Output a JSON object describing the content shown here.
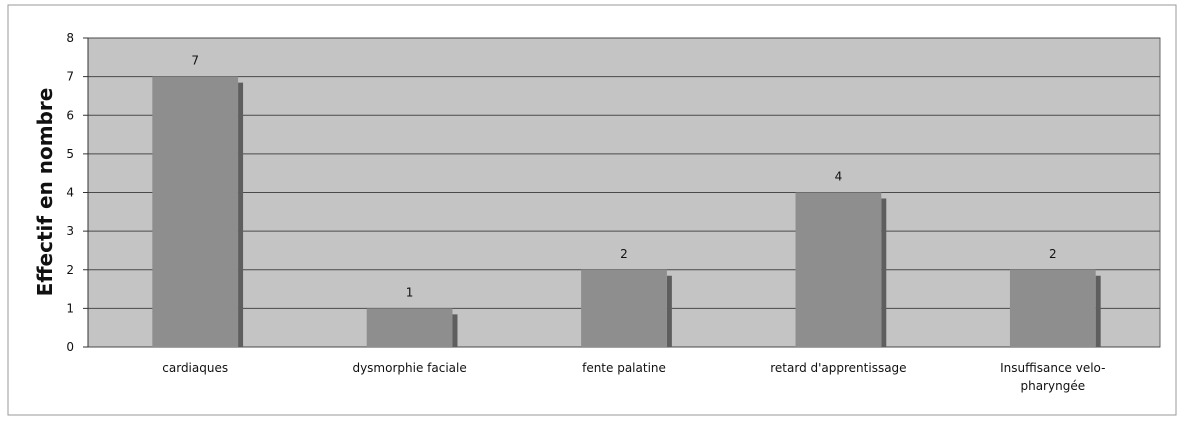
{
  "chart_data": {
    "type": "bar",
    "y_label": "Effectif en nombre",
    "categories": [
      "cardiaques",
      "dysmorphie faciale",
      "fente palatine",
      "retard d'apprentissage",
      "Insuffisance velo-pharyngée"
    ],
    "values": [
      7,
      1,
      2,
      4,
      2
    ],
    "color": "#8e8e8e",
    "ylim": [
      0,
      8
    ],
    "yticks": [
      0,
      1,
      2,
      3,
      4,
      5,
      6,
      7,
      8
    ],
    "grid": true
  }
}
